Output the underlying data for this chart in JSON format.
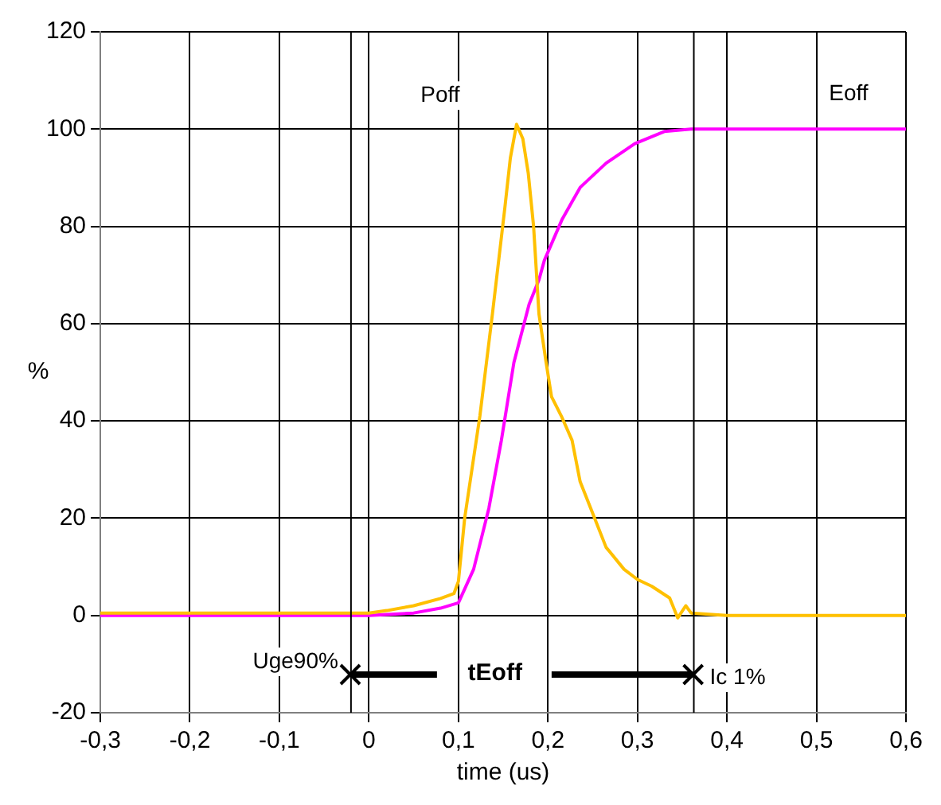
{
  "chart_data": {
    "type": "line",
    "xlabel": "time (us)",
    "ylabel": "%",
    "series": [
      {
        "name": "Poff",
        "color": "#ffc000",
        "x": [
          -0.3,
          -0.25,
          -0.2,
          -0.15,
          -0.1,
          -0.05,
          0,
          0.02,
          0.05,
          0.08,
          0.095,
          0.1,
          0.107,
          0.124,
          0.138,
          0.152,
          0.158,
          0.165,
          0.172,
          0.178,
          0.184,
          0.19,
          0.198,
          0.204,
          0.215,
          0.227,
          0.236,
          0.25,
          0.265,
          0.285,
          0.3,
          0.316,
          0.336,
          0.345,
          0.354,
          0.36,
          0.4,
          0.5,
          0.6
        ],
        "values": [
          0.5,
          0.5,
          0.5,
          0.5,
          0.5,
          0.5,
          0.5,
          1,
          2,
          3.5,
          4.5,
          7,
          20,
          41,
          62,
          84,
          94,
          101,
          98,
          91,
          80,
          62,
          52,
          45,
          41,
          36,
          27.5,
          21,
          14,
          9.5,
          7.4,
          6,
          3.6,
          -0.5,
          2,
          0.5,
          0,
          0,
          0
        ]
      },
      {
        "name": "Eoff",
        "color": "#ff00ff",
        "x": [
          -0.3,
          0,
          0.05,
          0.08,
          0.1,
          0.117,
          0.134,
          0.148,
          0.162,
          0.179,
          0.19,
          0.196,
          0.216,
          0.236,
          0.265,
          0.297,
          0.33,
          0.36,
          0.4,
          0.5,
          0.6
        ],
        "values": [
          0,
          0,
          0.5,
          1.5,
          2.6,
          9.5,
          22,
          36,
          52,
          64,
          69,
          73,
          81.5,
          88,
          93,
          97,
          99.5,
          100,
          100,
          100,
          100
        ]
      }
    ],
    "xlim": [
      -0.3,
      0.6
    ],
    "ylim": [
      -20,
      120
    ],
    "xticks": [
      {
        "value": -0.3,
        "label": "-0,3"
      },
      {
        "value": -0.2,
        "label": "-0,2"
      },
      {
        "value": -0.1,
        "label": "-0,1"
      },
      0,
      {
        "value": 0.1,
        "label": "0,1"
      },
      {
        "value": 0.2,
        "label": "0,2"
      },
      {
        "value": 0.3,
        "label": "0,3"
      },
      {
        "value": 0.4,
        "label": "0,4"
      },
      {
        "value": 0.5,
        "label": "0,5"
      },
      {
        "value": 0.6,
        "label": "0,6"
      }
    ],
    "yticks": [
      -20,
      0,
      20,
      40,
      60,
      80,
      100,
      120
    ],
    "ref_lines": [
      {
        "axis": "x",
        "value": -0.02,
        "color": "#000000"
      },
      {
        "axis": "x",
        "value": 0.363,
        "color": "#000000"
      }
    ],
    "annotations": [
      "Uge90%",
      "Ic 1%",
      {
        "text": "tEoff",
        "x": 0.363,
        "y": -12
      }
    ],
    "grid": true,
    "legend": false,
    "marker": "none",
    "line_style": "solid"
  }
}
